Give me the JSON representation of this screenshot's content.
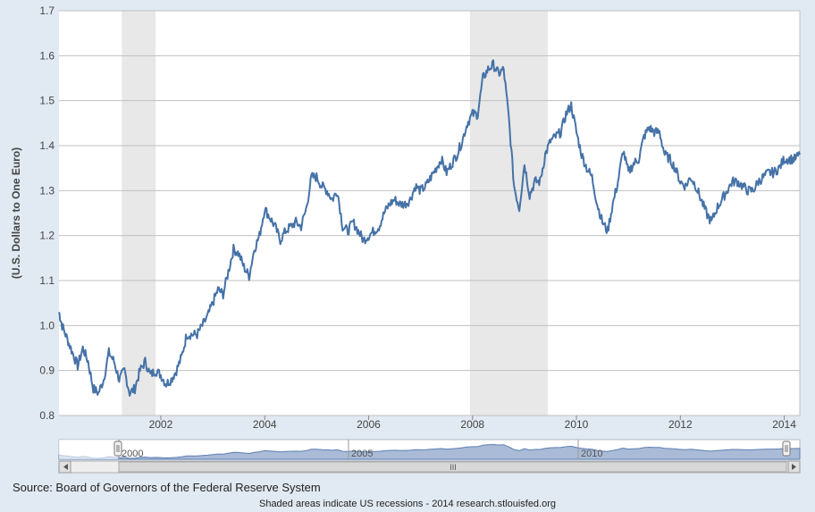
{
  "colors": {
    "background": "#e1e9f2",
    "plot_background": "#ffffff",
    "series": "#4572a7",
    "recession": "#e8e8e8",
    "grid": "#c0c0c0",
    "navigator_fill": "#a9bbd6",
    "navigator_line": "#5d7fb3"
  },
  "footer": {
    "source": "Source: Board of Governors of the Federal Reserve System",
    "note": "Shaded areas indicate US recessions - 2014 research.stlouisfed.org"
  },
  "chart_data": {
    "type": "line",
    "title": "",
    "xlabel": "",
    "ylabel": "(U.S. Dollars to One Euro)",
    "xlim": [
      2000.04,
      2014.3
    ],
    "ylim": [
      0.8,
      1.7
    ],
    "y_ticks": [
      "0.8",
      "0.9",
      "1.0",
      "1.1",
      "1.2",
      "1.3",
      "1.4",
      "1.5",
      "1.6",
      "1.7"
    ],
    "x_ticks": [
      "2002",
      "2004",
      "2006",
      "2008",
      "2010",
      "2012",
      "2014"
    ],
    "grid": true,
    "legend": "none",
    "recessions": [
      {
        "start": 2001.25,
        "end": 2001.9
      },
      {
        "start": 2007.95,
        "end": 2009.45
      }
    ],
    "navigator": {
      "tick_labels": [
        "2000",
        "2005",
        "2010"
      ],
      "scroll_grip": "III"
    },
    "series": [
      {
        "x": [
          2000.04,
          2000.1,
          2000.2,
          2000.3,
          2000.4,
          2000.5,
          2000.6,
          2000.7,
          2000.8,
          2000.9,
          2001.0,
          2001.1,
          2001.2,
          2001.3,
          2001.4,
          2001.5,
          2001.6,
          2001.7,
          2001.8,
          2001.9,
          2002.0,
          2002.1,
          2002.2,
          2002.3,
          2002.4,
          2002.5,
          2002.6,
          2002.7,
          2002.8,
          2002.9,
          2003.0,
          2003.1,
          2003.2,
          2003.3,
          2003.4,
          2003.5,
          2003.6,
          2003.7,
          2003.8,
          2003.9,
          2004.0,
          2004.1,
          2004.2,
          2004.3,
          2004.4,
          2004.5,
          2004.6,
          2004.7,
          2004.8,
          2004.9,
          2005.0,
          2005.1,
          2005.2,
          2005.3,
          2005.4,
          2005.5,
          2005.6,
          2005.7,
          2005.8,
          2005.9,
          2006.0,
          2006.1,
          2006.2,
          2006.3,
          2006.4,
          2006.5,
          2006.6,
          2006.7,
          2006.8,
          2006.9,
          2007.0,
          2007.1,
          2007.2,
          2007.3,
          2007.4,
          2007.5,
          2007.6,
          2007.7,
          2007.8,
          2007.9,
          2008.0,
          2008.1,
          2008.2,
          2008.3,
          2008.4,
          2008.5,
          2008.6,
          2008.7,
          2008.8,
          2008.9,
          2009.0,
          2009.1,
          2009.2,
          2009.3,
          2009.4,
          2009.5,
          2009.6,
          2009.7,
          2009.8,
          2009.9,
          2010.0,
          2010.1,
          2010.2,
          2010.3,
          2010.4,
          2010.5,
          2010.6,
          2010.7,
          2010.8,
          2010.9,
          2011.0,
          2011.1,
          2011.2,
          2011.3,
          2011.4,
          2011.5,
          2011.6,
          2011.7,
          2011.8,
          2011.9,
          2012.0,
          2012.1,
          2012.2,
          2012.3,
          2012.4,
          2012.5,
          2012.6,
          2012.7,
          2012.8,
          2012.9,
          2013.0,
          2013.1,
          2013.2,
          2013.3,
          2013.4,
          2013.5,
          2013.6,
          2013.7,
          2013.8,
          2013.9,
          2014.0,
          2014.1,
          2014.2,
          2014.3
        ],
        "values": [
          1.03,
          1.0,
          0.97,
          0.94,
          0.91,
          0.95,
          0.92,
          0.86,
          0.85,
          0.88,
          0.94,
          0.92,
          0.88,
          0.9,
          0.85,
          0.86,
          0.9,
          0.92,
          0.89,
          0.9,
          0.89,
          0.87,
          0.88,
          0.9,
          0.93,
          0.98,
          0.98,
          0.98,
          1.0,
          1.02,
          1.05,
          1.08,
          1.07,
          1.12,
          1.17,
          1.16,
          1.13,
          1.11,
          1.17,
          1.2,
          1.26,
          1.24,
          1.22,
          1.19,
          1.21,
          1.22,
          1.23,
          1.22,
          1.26,
          1.33,
          1.33,
          1.31,
          1.3,
          1.28,
          1.3,
          1.22,
          1.21,
          1.23,
          1.21,
          1.19,
          1.2,
          1.21,
          1.22,
          1.25,
          1.27,
          1.28,
          1.27,
          1.27,
          1.28,
          1.31,
          1.3,
          1.31,
          1.33,
          1.35,
          1.37,
          1.34,
          1.36,
          1.38,
          1.41,
          1.45,
          1.47,
          1.47,
          1.55,
          1.57,
          1.58,
          1.56,
          1.57,
          1.46,
          1.31,
          1.26,
          1.36,
          1.29,
          1.32,
          1.32,
          1.38,
          1.41,
          1.42,
          1.43,
          1.47,
          1.49,
          1.43,
          1.38,
          1.35,
          1.33,
          1.27,
          1.23,
          1.21,
          1.27,
          1.32,
          1.39,
          1.34,
          1.36,
          1.37,
          1.42,
          1.44,
          1.43,
          1.43,
          1.38,
          1.37,
          1.35,
          1.32,
          1.31,
          1.33,
          1.31,
          1.28,
          1.25,
          1.23,
          1.26,
          1.28,
          1.3,
          1.32,
          1.32,
          1.31,
          1.3,
          1.3,
          1.32,
          1.33,
          1.34,
          1.34,
          1.35,
          1.37,
          1.37,
          1.37,
          1.38
        ]
      }
    ]
  }
}
